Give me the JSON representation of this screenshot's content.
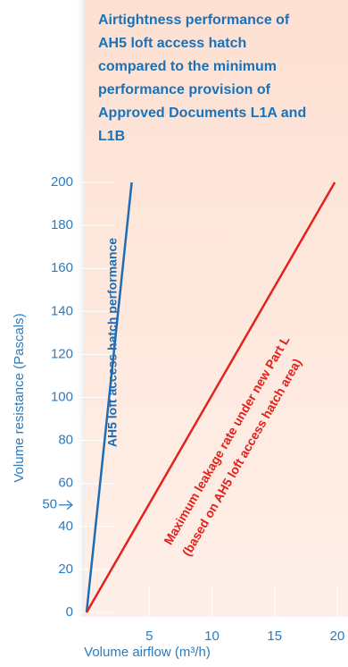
{
  "chart_data": {
    "type": "line",
    "title": "Airtightness performance of AH5 loft access hatch compared to the minimum performance provision of Approved Documents L1A and L1B",
    "x_label": "Volume airflow (m³/h)",
    "y_label": "Volume resistance (Pascals)",
    "xlim": [
      0,
      20
    ],
    "ylim": [
      0,
      200
    ],
    "xticks": [
      5,
      10,
      15,
      20
    ],
    "yticks": [
      0,
      20,
      40,
      60,
      80,
      100,
      120,
      140,
      160,
      180,
      200
    ],
    "annotation": {
      "text": "50",
      "y": 50
    },
    "series": [
      {
        "name": "AH5 loft access hatch performance",
        "color": "#1c6db5",
        "x": [
          0,
          3.6
        ],
        "values": [
          0,
          200
        ]
      },
      {
        "name": "Maximum leakage rate under new Part L",
        "subname": "(based on AH5 loft access hatch area)",
        "color": "#e3221b",
        "x": [
          0,
          19.8
        ],
        "values": [
          0,
          200
        ]
      }
    ]
  }
}
